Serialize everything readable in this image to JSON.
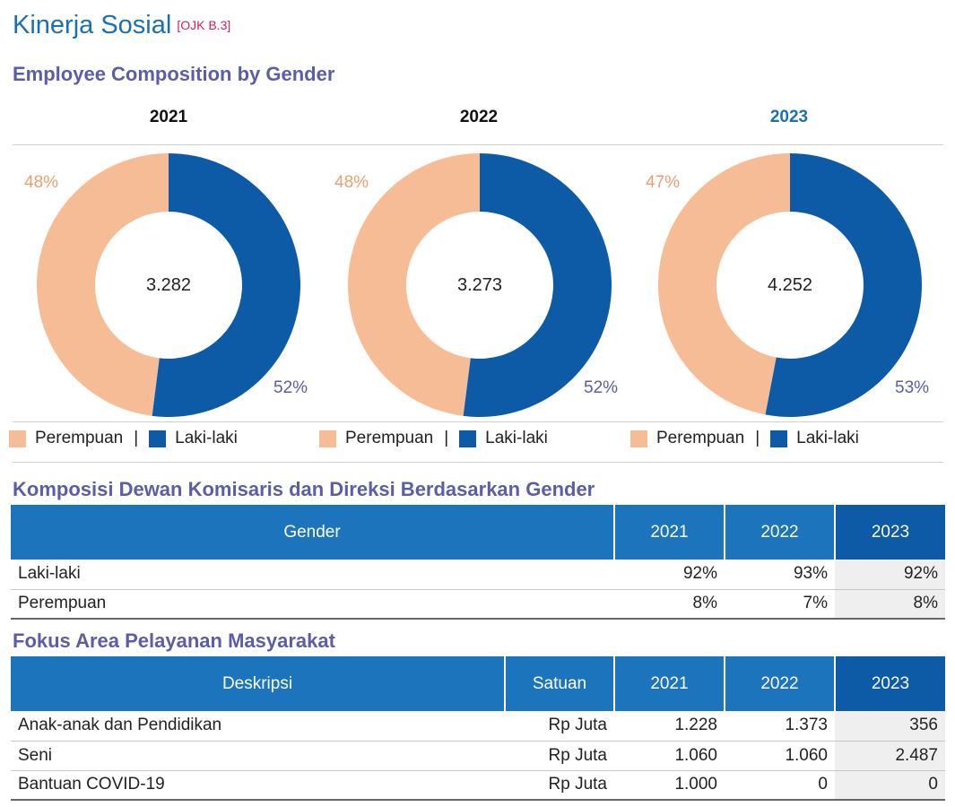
{
  "header": {
    "title": "Kinerja Sosial",
    "tag": "[OJK B.3]"
  },
  "employee_section": {
    "title": "Employee Composition by Gender"
  },
  "legend": {
    "female": "Perempuan",
    "separator": "|",
    "male": "Laki-laki"
  },
  "colors": {
    "female": "#f6bc96",
    "male": "#0d5aa7",
    "header": "#1c74bd",
    "header_current": "#0d5aa7"
  },
  "chart_data": [
    {
      "type": "pie",
      "title": "2021",
      "total": "3.282",
      "categories": [
        "Perempuan",
        "Laki-laki"
      ],
      "values": [
        48,
        52
      ],
      "labels": [
        "48%",
        "52%"
      ]
    },
    {
      "type": "pie",
      "title": "2022",
      "total": "3.273",
      "categories": [
        "Perempuan",
        "Laki-laki"
      ],
      "values": [
        48,
        52
      ],
      "labels": [
        "48%",
        "52%"
      ]
    },
    {
      "type": "pie",
      "title": "2023",
      "total": "4.252",
      "categories": [
        "Perempuan",
        "Laki-laki"
      ],
      "values": [
        47,
        53
      ],
      "labels": [
        "47%",
        "53%"
      ]
    }
  ],
  "board_section": {
    "title": "Komposisi Dewan Komisaris dan Direksi Berdasarkan Gender",
    "headers": [
      "Gender",
      "2021",
      "2022",
      "2023"
    ],
    "rows": [
      {
        "label": "Laki-laki",
        "values": [
          "92%",
          "93%",
          "92%"
        ]
      },
      {
        "label": "Perempuan",
        "values": [
          "8%",
          "7%",
          "8%"
        ]
      }
    ]
  },
  "community_section": {
    "title": "Fokus Area Pelayanan Masyarakat",
    "headers": [
      "Deskripsi",
      "Satuan",
      "2021",
      "2022",
      "2023"
    ],
    "rows": [
      {
        "label": "Anak-anak dan Pendidikan",
        "unit": "Rp Juta",
        "values": [
          "1.228",
          "1.373",
          "356"
        ]
      },
      {
        "label": "Seni",
        "unit": "Rp Juta",
        "values": [
          "1.060",
          "1.060",
          "2.487"
        ]
      },
      {
        "label": "Bantuan COVID-19",
        "unit": "Rp Juta",
        "values": [
          "1.000",
          "0",
          "0"
        ]
      }
    ]
  }
}
